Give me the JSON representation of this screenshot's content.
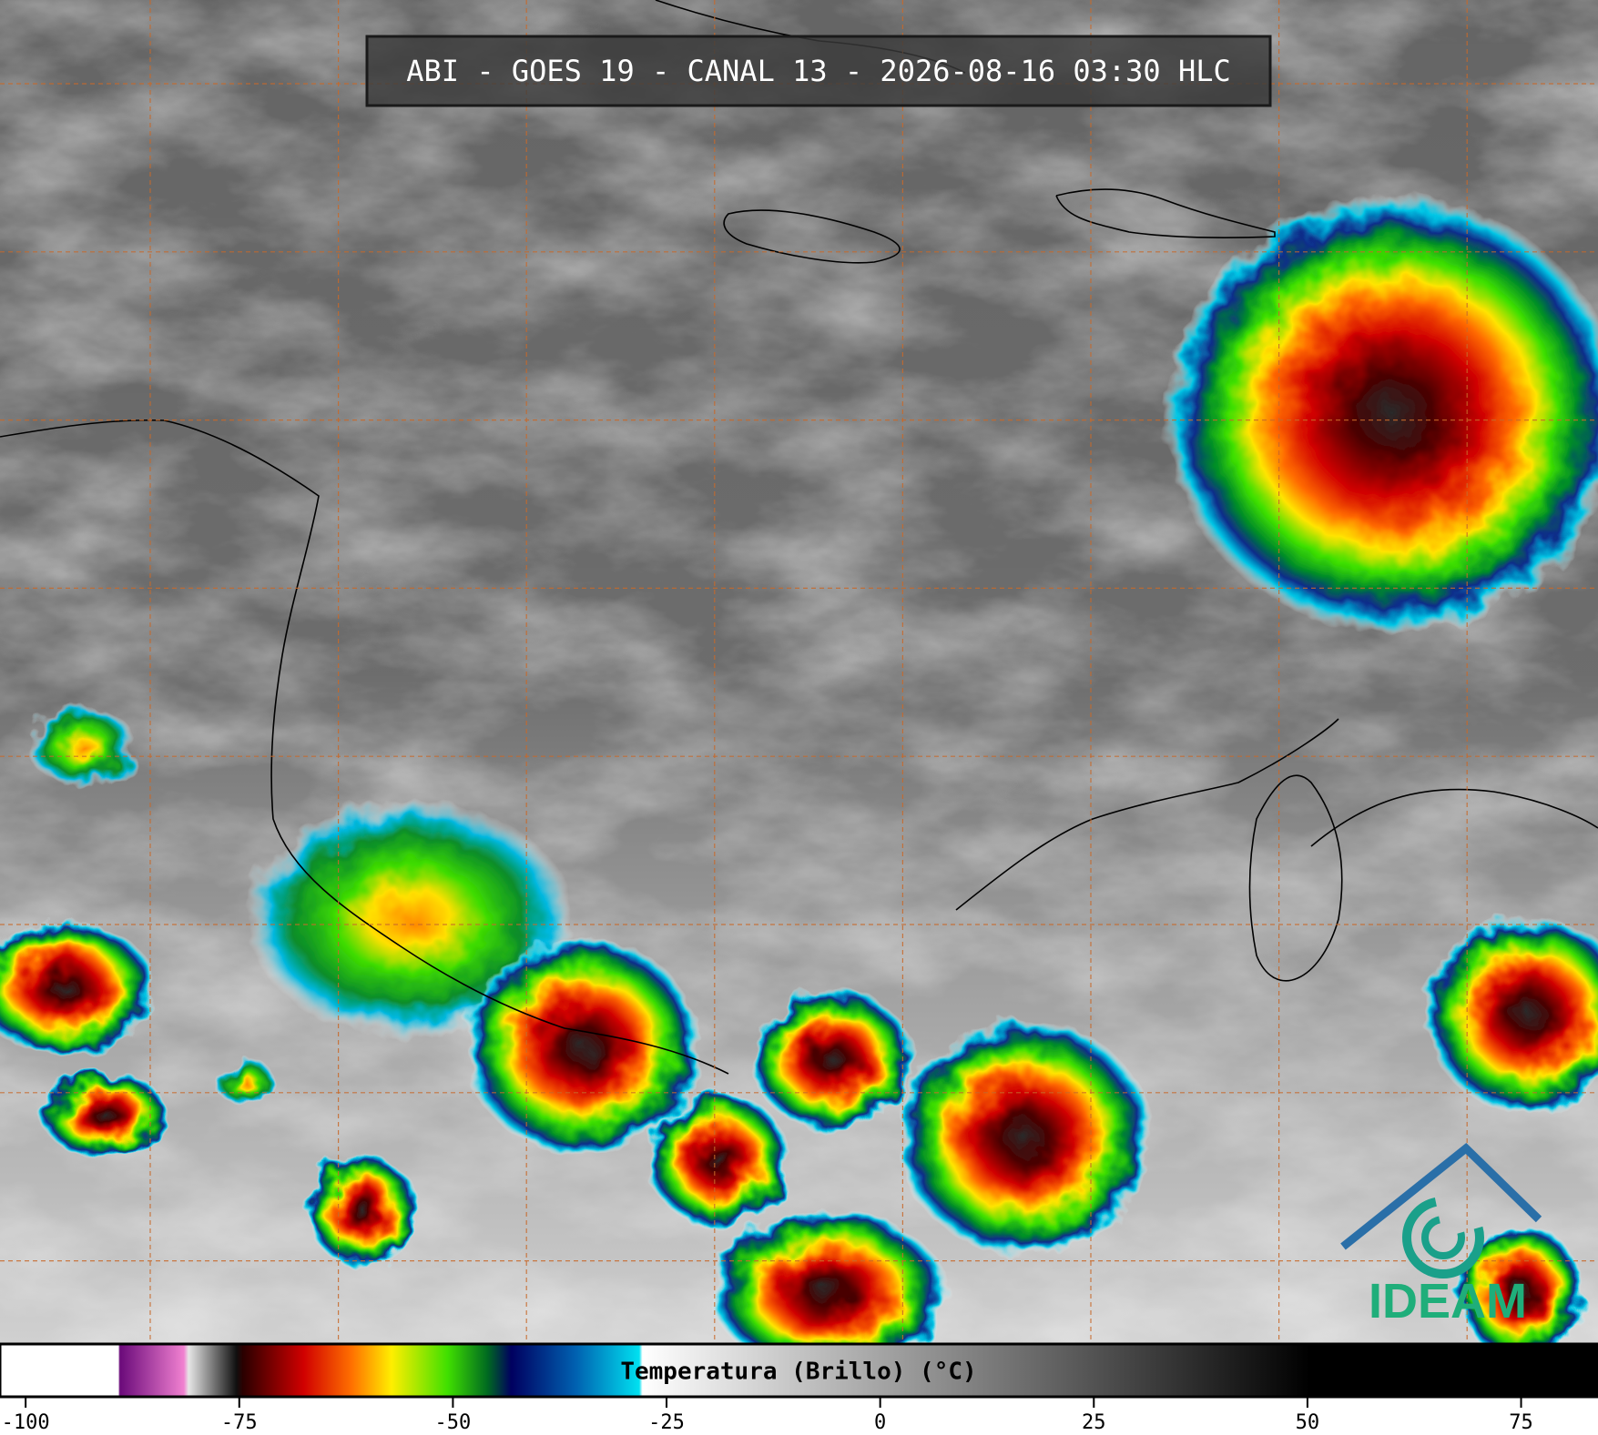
{
  "header": {
    "title": "ABI - GOES 19 - CANAL 13 - 2026-08-16 03:30 HLC"
  },
  "colorbar": {
    "label": "Temperatura (Brillo) (°C)",
    "range": [
      -103,
      84
    ],
    "ticks": [
      -100,
      -75,
      -50,
      -25,
      0,
      25,
      50,
      75
    ]
  },
  "logo": {
    "text": "IDEAM"
  }
}
